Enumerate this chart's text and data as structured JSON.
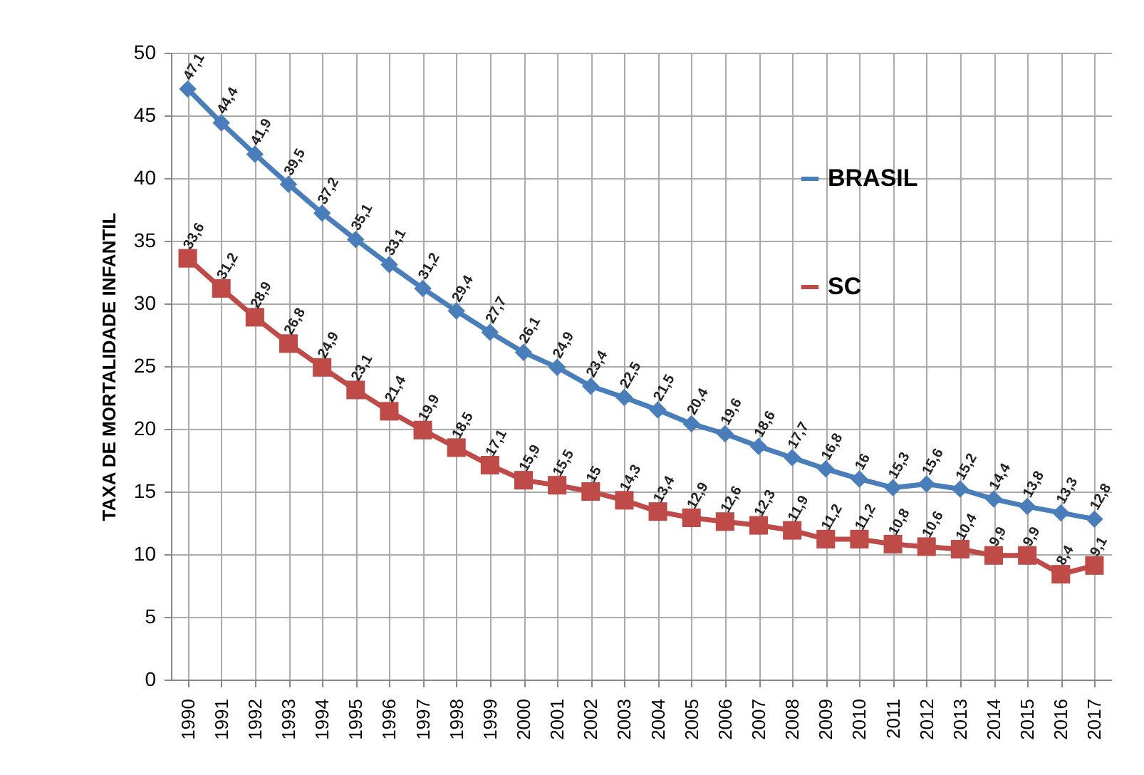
{
  "chart_data": {
    "type": "line",
    "ylabel": "TAXA DE MORTALIDADE INFANTIL",
    "categories": [
      "1990",
      "1991",
      "1992",
      "1993",
      "1994",
      "1995",
      "1996",
      "1997",
      "1998",
      "1999",
      "2000",
      "2001",
      "2002",
      "2003",
      "2004",
      "2005",
      "2006",
      "2007",
      "2008",
      "2009",
      "2010",
      "2011",
      "2012",
      "2013",
      "2014",
      "2015",
      "2016",
      "2017"
    ],
    "series": [
      {
        "name": "BRASIL",
        "color": "#4a7ebb",
        "marker": "diamond",
        "values": [
          47.1,
          44.4,
          41.9,
          39.5,
          37.2,
          35.1,
          33.1,
          31.2,
          29.4,
          27.7,
          26.1,
          24.9,
          23.4,
          22.5,
          21.5,
          20.4,
          19.6,
          18.6,
          17.7,
          16.8,
          16,
          15.3,
          15.6,
          15.2,
          14.4,
          13.8,
          13.3,
          12.8
        ],
        "value_labels": [
          "47,1",
          "44,4",
          "41,9",
          "39,5",
          "37,2",
          "35,1",
          "33,1",
          "31,2",
          "29,4",
          "27,7",
          "26,1",
          "24,9",
          "23,4",
          "22,5",
          "21,5",
          "20,4",
          "19,6",
          "18,6",
          "17,7",
          "16,8",
          "16",
          "15,3",
          "15,6",
          "15,2",
          "14,4",
          "13,8",
          "13,3",
          "12,8"
        ]
      },
      {
        "name": "SC",
        "color": "#be4b48",
        "marker": "square",
        "values": [
          33.6,
          31.2,
          28.9,
          26.8,
          24.9,
          23.1,
          21.4,
          19.9,
          18.5,
          17.1,
          15.9,
          15.5,
          15,
          14.3,
          13.4,
          12.9,
          12.6,
          12.3,
          11.9,
          11.2,
          11.2,
          10.8,
          10.6,
          10.4,
          9.9,
          9.9,
          8.4,
          9.1
        ],
        "value_labels": [
          "33,6",
          "31,2",
          "28,9",
          "26,8",
          "24,9",
          "23,1",
          "21,4",
          "19,9",
          "18,5",
          "17,1",
          "15,9",
          "15,5",
          "15",
          "14,3",
          "13,4",
          "12,9",
          "12,6",
          "12,3",
          "11,9",
          "11,2",
          "11,2",
          "10,8",
          "10,6",
          "10,4",
          "9,9",
          "9,9",
          "8,4",
          "9,1"
        ]
      }
    ],
    "ylim": [
      0,
      50
    ],
    "yticks": [
      0,
      5,
      10,
      15,
      20,
      25,
      30,
      35,
      40,
      45,
      50
    ],
    "grid": true,
    "legend": "right",
    "line_style": "solid"
  }
}
